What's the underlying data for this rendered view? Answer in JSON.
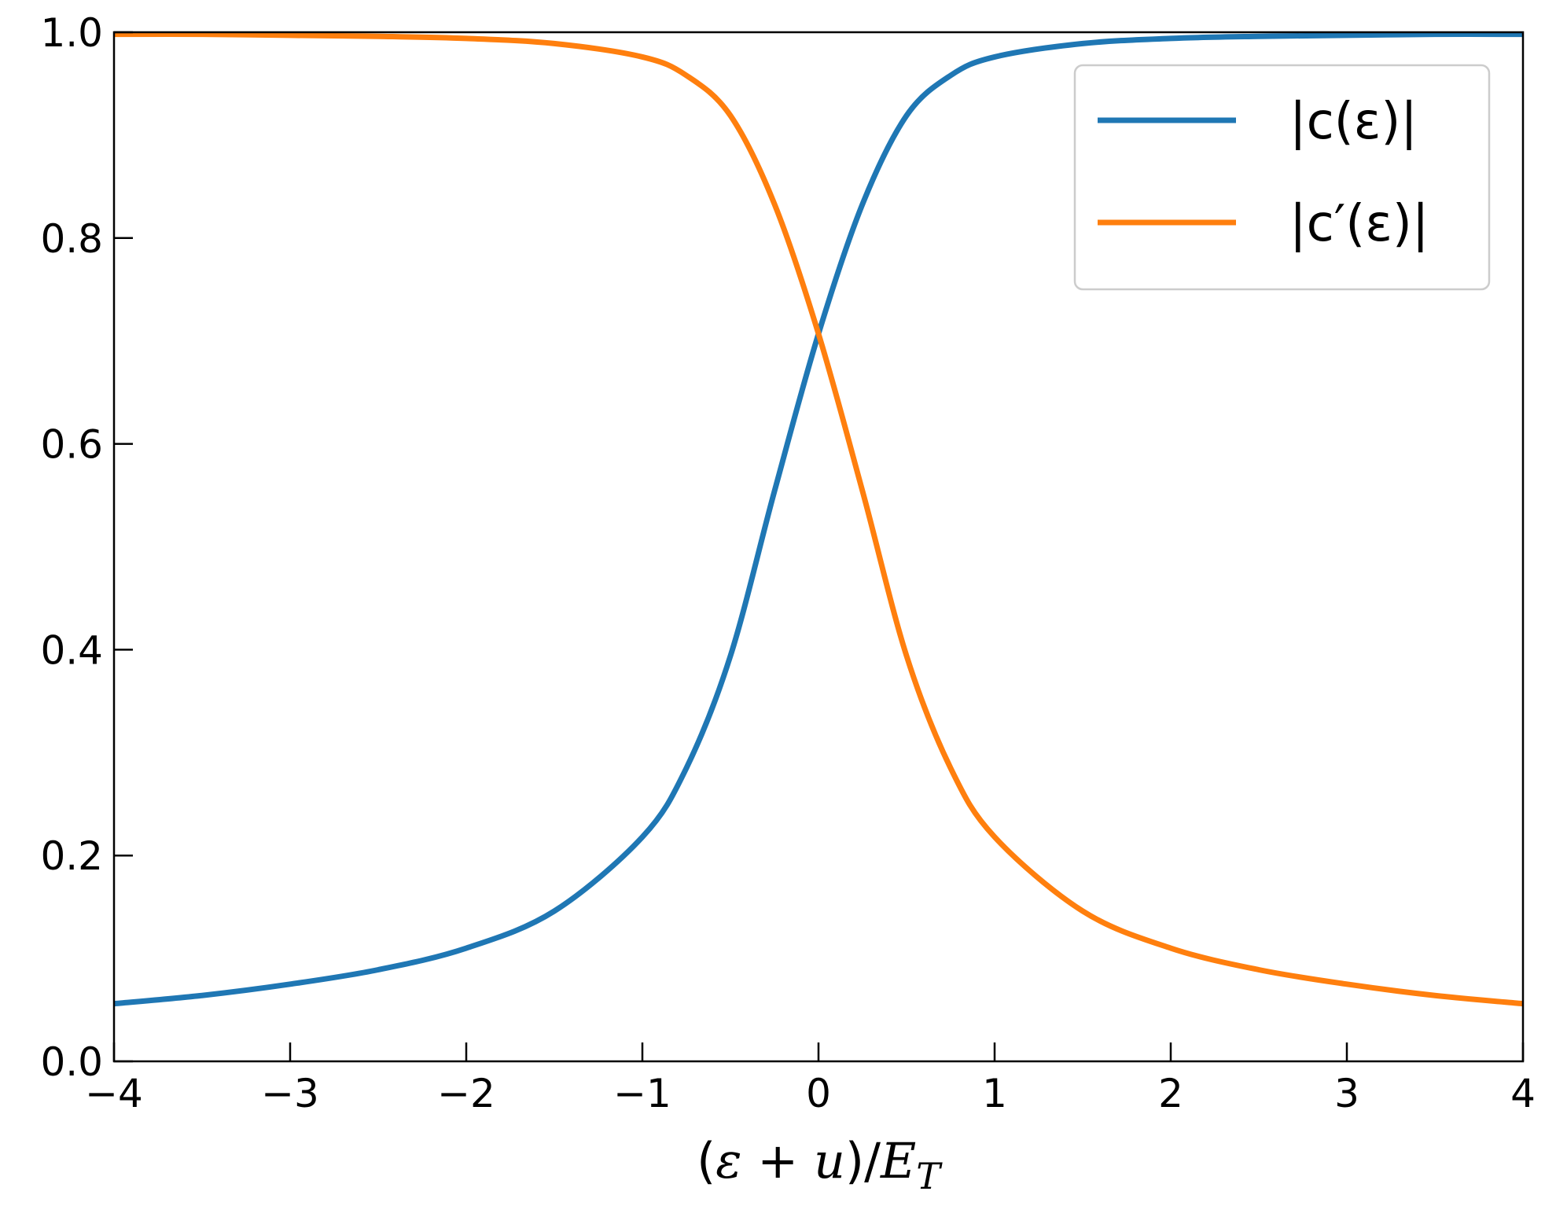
{
  "chart_data": {
    "type": "line",
    "xlabel": "(ε + u)/E_T",
    "xlabel_parts": {
      "open": "(",
      "eps": "ε",
      "plus": " + ",
      "u": "u",
      "close": ")/",
      "E": "E",
      "T": "T"
    },
    "ylabel": "",
    "title": "",
    "xlim": [
      -4,
      4
    ],
    "ylim": [
      0,
      1.0
    ],
    "xticks": [
      -4,
      -3,
      -2,
      -1,
      0,
      1,
      2,
      3,
      4
    ],
    "xtick_labels": [
      "−4",
      "−3",
      "−2",
      "−1",
      "0",
      "1",
      "2",
      "3",
      "4"
    ],
    "yticks": [
      0,
      0.2,
      0.4,
      0.6,
      0.8,
      1.0
    ],
    "ytick_labels": [
      "0.0",
      "0.2",
      "0.4",
      "0.6",
      "0.8",
      "1.0"
    ],
    "grid": false,
    "legend_position": "top-right",
    "series": [
      {
        "name": "|c(ε)|",
        "legend_text": "|c(ε)|",
        "color": "#1f77b4",
        "x": [
          -4.0,
          -3.5,
          -3.0,
          -2.5,
          -2.0,
          -1.5,
          -1.0,
          -0.75,
          -0.5,
          -0.25,
          0.0,
          0.25,
          0.5,
          0.75,
          1.0,
          1.5,
          2.0,
          2.5,
          3.0,
          3.5,
          4.0
        ],
        "y": [
          0.056,
          0.064,
          0.075,
          0.089,
          0.11,
          0.146,
          0.218,
          0.285,
          0.394,
          0.554,
          0.707,
          0.833,
          0.919,
          0.958,
          0.976,
          0.989,
          0.994,
          0.996,
          0.997,
          0.998,
          0.998
        ]
      },
      {
        "name": "|c′(ε)|",
        "legend_text": "|c′(ε)|",
        "color": "#ff7f0e",
        "x": [
          -4.0,
          -3.5,
          -3.0,
          -2.5,
          -2.0,
          -1.5,
          -1.0,
          -0.75,
          -0.5,
          -0.25,
          0.0,
          0.25,
          0.5,
          0.75,
          1.0,
          1.5,
          2.0,
          2.5,
          3.0,
          3.5,
          4.0
        ],
        "y": [
          0.998,
          0.998,
          0.997,
          0.996,
          0.994,
          0.989,
          0.976,
          0.958,
          0.919,
          0.833,
          0.707,
          0.554,
          0.394,
          0.285,
          0.218,
          0.146,
          0.11,
          0.089,
          0.075,
          0.064,
          0.056
        ]
      }
    ]
  }
}
